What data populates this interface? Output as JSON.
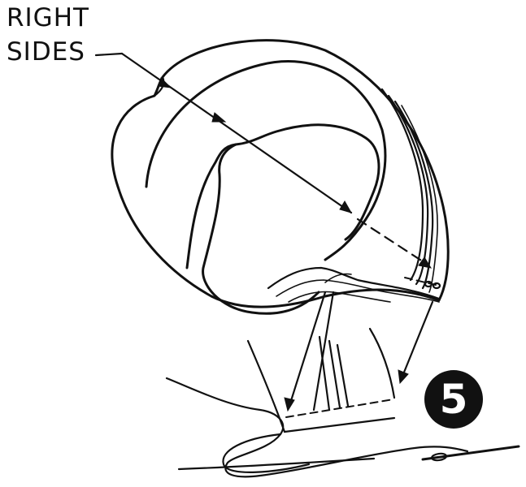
{
  "label": {
    "line1": "RIGHT",
    "line2": "SIDES"
  },
  "step": {
    "number": "5"
  },
  "icons": [
    "needle-icon",
    "thread-icon",
    "arrow-icon"
  ]
}
